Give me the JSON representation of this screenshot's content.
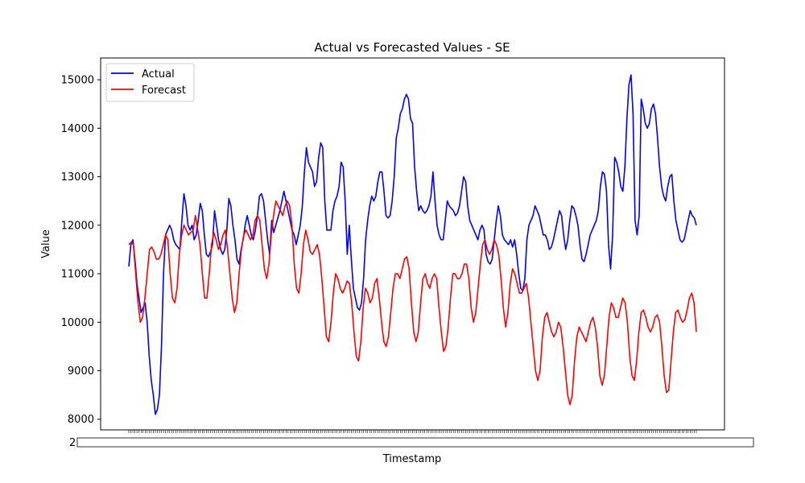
{
  "chart_data": {
    "type": "line",
    "title": "Actual vs Forecasted Values - SE",
    "xlabel": "Timestamp",
    "ylabel": "Value",
    "ylim": [
      7780,
      15450
    ],
    "yticks": [
      8000,
      9000,
      10000,
      11000,
      12000,
      13000,
      14000,
      15000
    ],
    "xtick_text": "2",
    "legend": {
      "placement": "top-left",
      "entries": [
        "Actual",
        "Forecast"
      ]
    },
    "grid": false,
    "series": [
      {
        "name": "Actual",
        "color": "#0000ff",
        "values": [
          11150,
          11600,
          11700,
          11300,
          10800,
          10500,
          10200,
          10300,
          10400,
          10000,
          9300,
          8800,
          8500,
          8100,
          8200,
          8500,
          9500,
          11000,
          11800,
          11900,
          12000,
          11900,
          11700,
          11600,
          11550,
          11500,
          12100,
          12650,
          12400,
          12000,
          11900,
          12000,
          11700,
          11800,
          12100,
          12450,
          12300,
          11800,
          11400,
          11350,
          11450,
          11600,
          12300,
          12000,
          11700,
          11500,
          11400,
          11500,
          11900,
          12550,
          12400,
          12000,
          11700,
          11300,
          11200,
          11500,
          11700,
          12000,
          12200,
          12000,
          11800,
          11700,
          11900,
          12200,
          12600,
          12650,
          12500,
          12100,
          11700,
          11400,
          12100,
          11850,
          12000,
          12150,
          12300,
          12500,
          12700,
          12500,
          12300,
          12100,
          11900,
          11800,
          11600,
          11800,
          12000,
          12400,
          13100,
          13600,
          13300,
          13200,
          13100,
          12800,
          12900,
          13400,
          13700,
          13600,
          12500,
          11900,
          11900,
          11900,
          12300,
          12500,
          12600,
          12800,
          13300,
          13200,
          12500,
          11400,
          12000,
          11300,
          10700,
          10500,
          10300,
          10250,
          10400,
          10900,
          11700,
          12100,
          12400,
          12600,
          12500,
          12600,
          12900,
          13100,
          13100,
          12700,
          12200,
          12150,
          12200,
          12500,
          13000,
          13800,
          14000,
          14300,
          14400,
          14600,
          14700,
          14600,
          14200,
          14100,
          13200,
          12700,
          12300,
          12400,
          12300,
          12250,
          12300,
          12400,
          12600,
          13100,
          12500,
          12000,
          11800,
          11700,
          11700,
          12100,
          12500,
          12400,
          12350,
          12300,
          12200,
          12250,
          12400,
          12700,
          13000,
          12900,
          12400,
          12100,
          12000,
          11900,
          11800,
          11700,
          11900,
          12000,
          11900,
          11400,
          11250,
          11200,
          11300,
          11700,
          12100,
          12400,
          12200,
          11800,
          11700,
          11650,
          11600,
          11700,
          11550,
          11700,
          11400,
          11000,
          10700,
          10650,
          10900,
          11700,
          12000,
          12100,
          12200,
          12400,
          12300,
          12200,
          12000,
          11800,
          11800,
          11700,
          11500,
          11550,
          11700,
          11900,
          12100,
          12300,
          12200,
          11800,
          11500,
          11700,
          12100,
          12400,
          12350,
          12200,
          12000,
          11600,
          11300,
          11250,
          11400,
          11600,
          11800,
          11900,
          12000,
          12100,
          12300,
          12800,
          13100,
          13050,
          12700,
          11600,
          11100,
          11800,
          13400,
          13300,
          13100,
          12800,
          12700,
          13200,
          14200,
          14900,
          15100,
          14300,
          12100,
          11800,
          12200,
          14600,
          14400,
          14100,
          14000,
          14100,
          14400,
          14500,
          14300,
          13800,
          13200,
          12800,
          12600,
          12500,
          12800,
          13000,
          13050,
          12500,
          12100,
          11900,
          11700,
          11650,
          11700,
          11900,
          12100,
          12300,
          12200,
          12150,
          12000
        ]
      },
      {
        "name": "Forecast",
        "color": "#ff0000",
        "values": [
          11600,
          11650,
          11600,
          11000,
          10400,
          10000,
          10100,
          10500,
          11000,
          11500,
          11550,
          11450,
          11300,
          11300,
          11400,
          11600,
          11800,
          11700,
          11000,
          10500,
          10400,
          10700,
          11400,
          11800,
          12000,
          11900,
          11800,
          11850,
          11900,
          12200,
          11900,
          11600,
          11000,
          10500,
          10500,
          11000,
          11600,
          11850,
          11700,
          11500,
          11600,
          11800,
          11900,
          11500,
          11000,
          10500,
          10200,
          10400,
          11000,
          11500,
          11800,
          11900,
          11800,
          11700,
          11800,
          12100,
          12200,
          12100,
          11600,
          11100,
          10900,
          11200,
          11800,
          12200,
          12500,
          12400,
          12300,
          12200,
          12400,
          12500,
          12400,
          12000,
          11200,
          10700,
          10600,
          11000,
          11600,
          11900,
          11700,
          11450,
          11400,
          11500,
          11600,
          11400,
          10900,
          10300,
          9700,
          9600,
          10000,
          10600,
          11000,
          10900,
          10700,
          10600,
          10700,
          10850,
          10800,
          10400,
          9800,
          9300,
          9200,
          9600,
          10300,
          10700,
          10600,
          10400,
          10500,
          10800,
          10900,
          10500,
          10000,
          9600,
          9500,
          9700,
          10200,
          10700,
          11000,
          11000,
          10900,
          11100,
          11300,
          11350,
          11100,
          10400,
          9800,
          9600,
          9800,
          10400,
          10900,
          11000,
          10800,
          10700,
          10900,
          11000,
          10900,
          10300,
          9800,
          9400,
          9500,
          9900,
          10500,
          11000,
          11000,
          10900,
          10900,
          11000,
          11200,
          11200,
          10900,
          10300,
          10000,
          10200,
          10700,
          11200,
          11600,
          11700,
          11500,
          11400,
          11500,
          11700,
          11600,
          11400,
          10900,
          10300,
          9900,
          10200,
          10800,
          11100,
          11000,
          10800,
          10600,
          10600,
          10700,
          10800,
          10500,
          10000,
          9500,
          9000,
          8800,
          9000,
          9700,
          10100,
          10200,
          10000,
          9800,
          9700,
          9800,
          10000,
          9900,
          9500,
          9000,
          8500,
          8300,
          8500,
          9200,
          9700,
          9900,
          9800,
          9700,
          9600,
          9800,
          10000,
          10100,
          9900,
          9500,
          8900,
          8700,
          8900,
          9500,
          10100,
          10400,
          10300,
          10100,
          10100,
          10300,
          10500,
          10400,
          10000,
          9300,
          8900,
          8800,
          9200,
          9800,
          10200,
          10250,
          10100,
          9900,
          9800,
          9900,
          10100,
          10150,
          10000,
          9500,
          8900,
          8550,
          8600,
          9200,
          9800,
          10200,
          10250,
          10100,
          10000,
          10050,
          10250,
          10500,
          10600,
          10400,
          9800
        ]
      }
    ]
  }
}
